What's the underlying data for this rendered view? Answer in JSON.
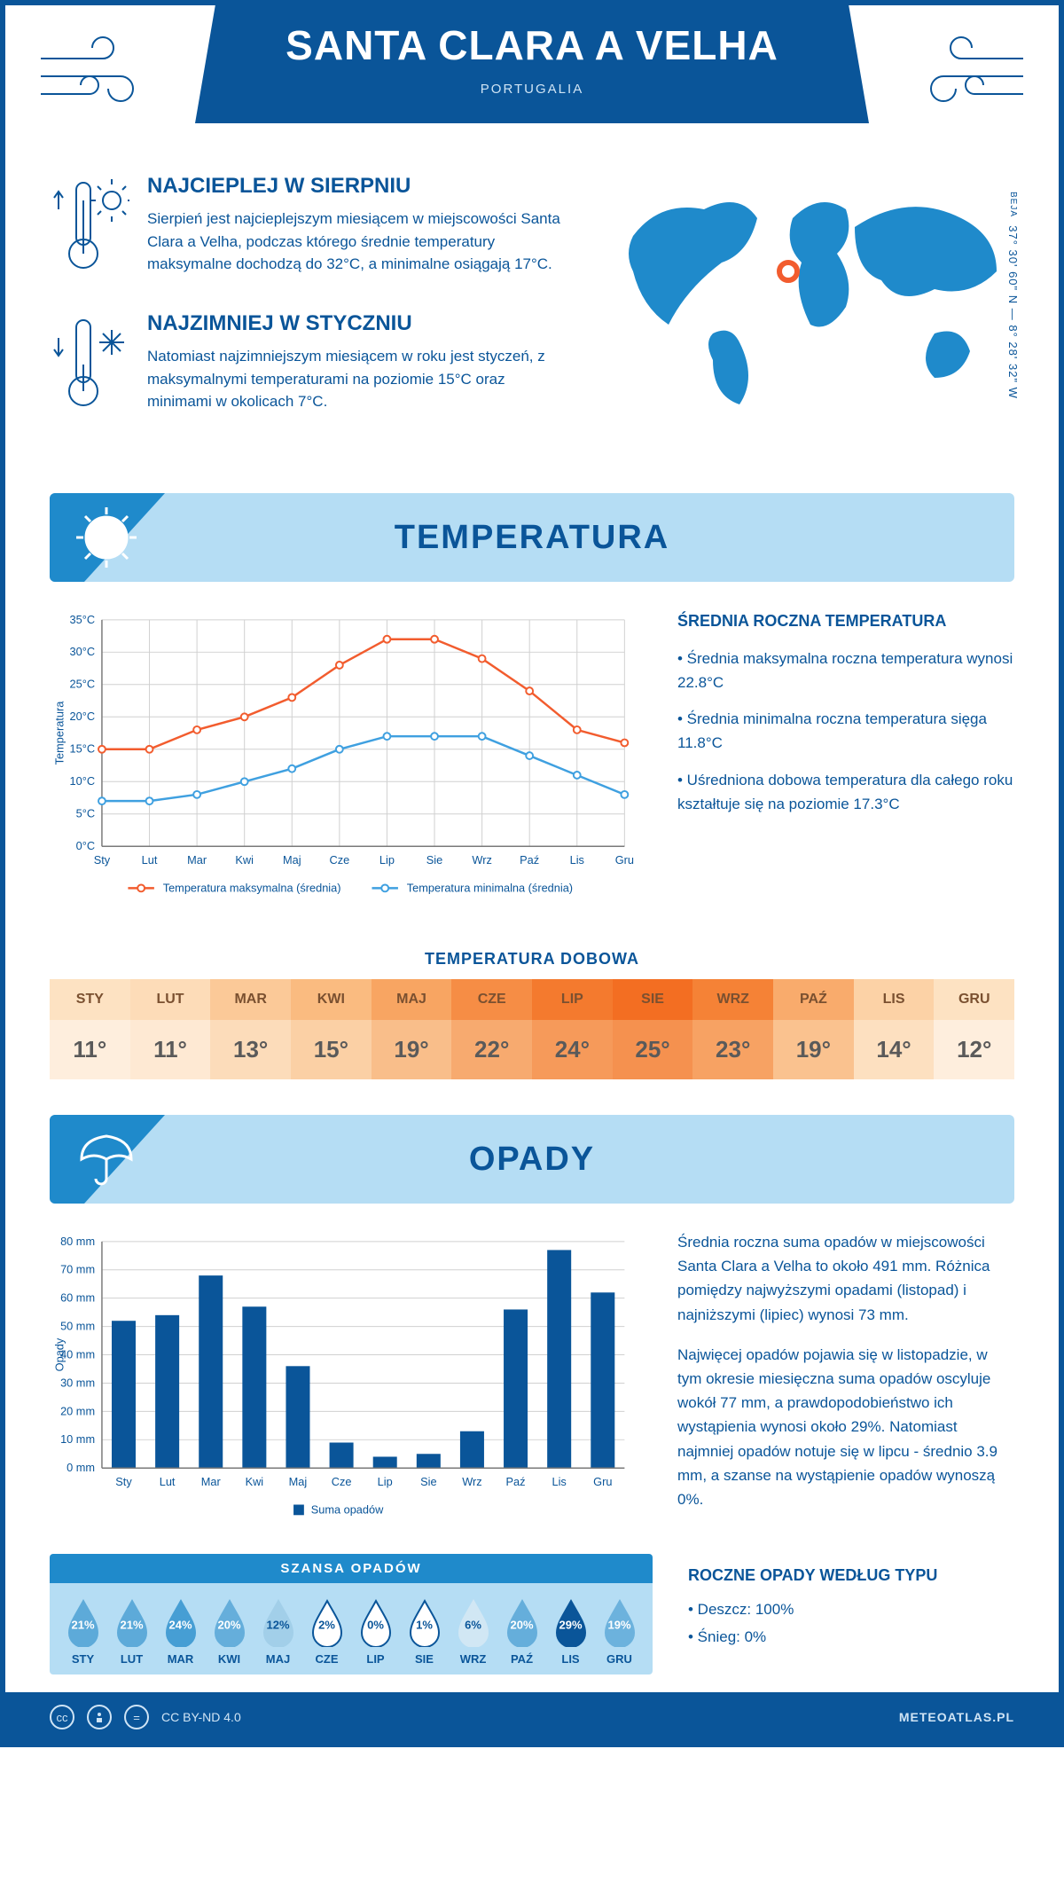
{
  "header": {
    "title": "SANTA CLARA A VELHA",
    "subtitle": "PORTUGALIA"
  },
  "coords": {
    "text": "37° 30' 60\" N — 8° 28' 32\" W",
    "region": "BEJA"
  },
  "intro": {
    "hot": {
      "title": "NAJCIEPLEJ W SIERPNIU",
      "body": "Sierpień jest najcieplejszym miesiącem w miejscowości Santa Clara a Velha, podczas którego średnie temperatury maksymalne dochodzą do 32°C, a minimalne osiągają 17°C."
    },
    "cold": {
      "title": "NAJZIMNIEJ W STYCZNIU",
      "body": "Natomiast najzimniejszym miesiącem w roku jest styczeń, z maksymalnymi temperaturami na poziomie 15°C oraz minimami w okolicach 7°C."
    }
  },
  "sections": {
    "temperature": "TEMPERATURA",
    "precip": "OPADY"
  },
  "temp_chart": {
    "months": [
      "Sty",
      "Lut",
      "Mar",
      "Kwi",
      "Maj",
      "Cze",
      "Lip",
      "Sie",
      "Wrz",
      "Paź",
      "Lis",
      "Gru"
    ],
    "max_values": [
      15,
      15,
      18,
      20,
      23,
      28,
      32,
      32,
      29,
      24,
      18,
      16
    ],
    "min_values": [
      7,
      7,
      8,
      10,
      12,
      15,
      17,
      17,
      17,
      14,
      11,
      8
    ],
    "max_color": "#f25c2e",
    "min_color": "#3fa0e0",
    "grid_color": "#d6d6d6",
    "axis_color": "#7a7a7a",
    "ylim": [
      0,
      35
    ],
    "ytick_step": 5,
    "ylabel": "Temperatura",
    "legend_max": "Temperatura maksymalna (średnia)",
    "legend_min": "Temperatura minimalna (średnia)"
  },
  "temp_text": {
    "heading": "ŚREDNIA ROCZNA TEMPERATURA",
    "p1": "• Średnia maksymalna roczna temperatura wynosi 22.8°C",
    "p2": "• Średnia minimalna roczna temperatura sięga 11.8°C",
    "p3": "• Uśredniona dobowa temperatura dla całego roku kształtuje się na poziomie 17.3°C"
  },
  "daily": {
    "title": "TEMPERATURA DOBOWA",
    "months": [
      "STY",
      "LUT",
      "MAR",
      "KWI",
      "MAJ",
      "CZE",
      "LIP",
      "SIE",
      "WRZ",
      "PAŹ",
      "LIS",
      "GRU"
    ],
    "values": [
      "11°",
      "11°",
      "13°",
      "15°",
      "19°",
      "22°",
      "24°",
      "25°",
      "23°",
      "19°",
      "14°",
      "12°"
    ],
    "head_colors": [
      "#fde2c2",
      "#fddcb8",
      "#fbc998",
      "#fabb80",
      "#f8a562",
      "#f68d45",
      "#f47a2e",
      "#f36e22",
      "#f58236",
      "#f9ab6c",
      "#fcd2a6",
      "#fde2c2"
    ],
    "val_colors": [
      "#feeedd",
      "#fee9d3",
      "#fcdcba",
      "#fbd0a5",
      "#f9be8a",
      "#f7aa6f",
      "#f69a5a",
      "#f5914f",
      "#f7a263",
      "#fac28f",
      "#fde0c0",
      "#feeedd"
    ]
  },
  "precip_chart": {
    "months": [
      "Sty",
      "Lut",
      "Mar",
      "Kwi",
      "Maj",
      "Cze",
      "Lip",
      "Sie",
      "Wrz",
      "Paź",
      "Lis",
      "Gru"
    ],
    "values": [
      52,
      54,
      68,
      57,
      36,
      9,
      4,
      5,
      13,
      56,
      77,
      62
    ],
    "bar_color": "#0a5599",
    "grid_color": "#d6d6d6",
    "axis_color": "#7a7a7a",
    "ylim": [
      0,
      80
    ],
    "ytick_step": 10,
    "ylabel": "Opady",
    "legend": "Suma opadów"
  },
  "precip_text": {
    "p1": "Średnia roczna suma opadów w miejscowości Santa Clara a Velha to około 491 mm. Różnica pomiędzy najwyższymi opadami (listopad) i najniższymi (lipiec) wynosi 73 mm.",
    "p2": "Najwięcej opadów pojawia się w listopadzie, w tym okresie miesięczna suma opadów oscyluje wokół 77 mm, a prawdopodobieństwo ich wystąpienia wynosi około 29%. Natomiast najmniej opadów notuje się w lipcu - średnio 3.9 mm, a szanse na wystąpienie opadów wynoszą 0%.",
    "type_heading": "ROCZNE OPADY WEDŁUG TYPU",
    "type_rain": "• Deszcz: 100%",
    "type_snow": "• Śnieg: 0%"
  },
  "chance": {
    "title": "SZANSA OPADÓW",
    "months": [
      "STY",
      "LUT",
      "MAR",
      "KWI",
      "MAJ",
      "CZE",
      "LIP",
      "SIE",
      "WRZ",
      "PAŹ",
      "LIS",
      "GRU"
    ],
    "values": [
      21,
      21,
      24,
      20,
      12,
      2,
      0,
      1,
      6,
      20,
      29,
      19
    ],
    "fill_scale": {
      "low": "#ffffff",
      "mid": "#5fb4e5",
      "high": "#0a5599"
    }
  },
  "footer": {
    "license": "CC BY-ND 4.0",
    "brand": "METEOATLAS.PL"
  }
}
